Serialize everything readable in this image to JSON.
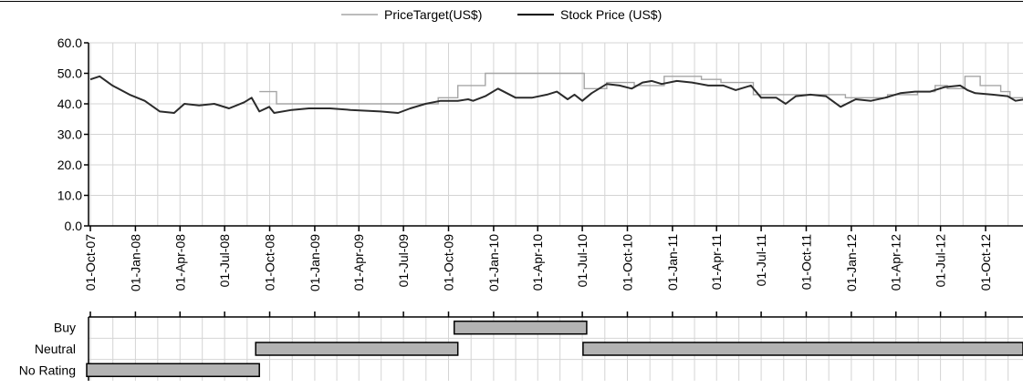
{
  "legend": {
    "price_target_label": "PriceTarget(US$)",
    "stock_price_label": "Stock Price (US$)"
  },
  "colors": {
    "price_target": "#a6a6a6",
    "stock_price": "#2b2b2b",
    "grid": "#d4d4d4",
    "rating_bar_fill": "#b3b3b3",
    "axis": "#000000"
  },
  "chart_data": [
    {
      "type": "line",
      "x_unit": "date",
      "ylim": [
        0,
        60
      ],
      "y_ticks": [
        "0.0",
        "10.0",
        "20.0",
        "30.0",
        "40.0",
        "50.0",
        "60.0"
      ],
      "x_ticks": [
        "01-Oct-07",
        "01-Jan-08",
        "01-Apr-08",
        "01-Jul-08",
        "01-Oct-08",
        "01-Jan-09",
        "01-Apr-09",
        "01-Jul-09",
        "01-Oct-09",
        "01-Jan-10",
        "01-Apr-10",
        "01-Jul-10",
        "01-Oct-10",
        "01-Jan-11",
        "01-Apr-11",
        "01-Jul-11",
        "01-Oct-11",
        "01-Jan-12",
        "01-Apr-12",
        "01-Jul-12",
        "01-Oct-12"
      ],
      "grid": true,
      "legend_position": "top",
      "series": [
        {
          "name": "PriceTarget(US$)",
          "step": true,
          "points": [
            [
              "2008-09-10",
              44.0
            ],
            [
              "2008-10-15",
              40.0
            ],
            [
              "2009-09-10",
              42.0
            ],
            [
              "2009-10-20",
              46.0
            ],
            [
              "2009-12-15",
              50.0
            ],
            [
              "2010-07-05",
              45.0
            ],
            [
              "2010-08-20",
              47.0
            ],
            [
              "2010-10-15",
              46.0
            ],
            [
              "2010-12-15",
              49.0
            ],
            [
              "2011-03-01",
              48.0
            ],
            [
              "2011-04-10",
              47.0
            ],
            [
              "2011-06-15",
              43.0
            ],
            [
              "2011-08-01",
              43.0
            ],
            [
              "2011-10-15",
              43.0
            ],
            [
              "2011-12-20",
              42.0
            ],
            [
              "2012-03-15",
              43.0
            ],
            [
              "2012-05-15",
              44.0
            ],
            [
              "2012-06-20",
              46.0
            ],
            [
              "2012-07-15",
              45.0
            ],
            [
              "2012-08-20",
              49.0
            ],
            [
              "2012-09-20",
              46.0
            ],
            [
              "2012-11-01",
              44.0
            ],
            [
              "2012-11-20",
              42.0
            ],
            [
              "2012-12-10",
              42.0
            ]
          ]
        },
        {
          "name": "Stock Price (US$)",
          "points": [
            [
              "2007-10-01",
              48.0
            ],
            [
              "2007-10-20",
              49.0
            ],
            [
              "2007-11-15",
              46.0
            ],
            [
              "2007-12-20",
              43.0
            ],
            [
              "2008-01-20",
              41.0
            ],
            [
              "2008-02-20",
              37.5
            ],
            [
              "2008-03-20",
              37.0
            ],
            [
              "2008-04-10",
              40.0
            ],
            [
              "2008-05-10",
              39.5
            ],
            [
              "2008-06-10",
              40.0
            ],
            [
              "2008-07-10",
              38.5
            ],
            [
              "2008-08-10",
              40.5
            ],
            [
              "2008-08-25",
              42.0
            ],
            [
              "2008-09-10",
              37.5
            ],
            [
              "2008-09-30",
              39.0
            ],
            [
              "2008-10-10",
              37.0
            ],
            [
              "2008-11-15",
              38.0
            ],
            [
              "2008-12-20",
              38.5
            ],
            [
              "2009-02-01",
              38.5
            ],
            [
              "2009-03-15",
              38.0
            ],
            [
              "2009-05-15",
              37.5
            ],
            [
              "2009-06-20",
              37.0
            ],
            [
              "2009-07-15",
              38.5
            ],
            [
              "2009-08-15",
              40.0
            ],
            [
              "2009-09-15",
              41.0
            ],
            [
              "2009-10-20",
              41.0
            ],
            [
              "2009-11-10",
              41.5
            ],
            [
              "2009-11-20",
              41.0
            ],
            [
              "2009-12-15",
              42.5
            ],
            [
              "2010-01-10",
              45.0
            ],
            [
              "2010-02-15",
              42.0
            ],
            [
              "2010-03-20",
              42.0
            ],
            [
              "2010-04-20",
              43.0
            ],
            [
              "2010-05-10",
              44.0
            ],
            [
              "2010-06-01",
              41.5
            ],
            [
              "2010-06-15",
              43.0
            ],
            [
              "2010-07-01",
              41.0
            ],
            [
              "2010-07-20",
              43.5
            ],
            [
              "2010-08-20",
              46.5
            ],
            [
              "2010-09-15",
              46.0
            ],
            [
              "2010-10-10",
              45.0
            ],
            [
              "2010-11-01",
              47.0
            ],
            [
              "2010-11-20",
              47.5
            ],
            [
              "2010-12-10",
              46.5
            ],
            [
              "2011-01-10",
              47.5
            ],
            [
              "2011-02-10",
              47.0
            ],
            [
              "2011-03-15",
              46.0
            ],
            [
              "2011-04-15",
              46.0
            ],
            [
              "2011-05-10",
              44.5
            ],
            [
              "2011-06-10",
              46.0
            ],
            [
              "2011-07-01",
              42.0
            ],
            [
              "2011-08-01",
              42.0
            ],
            [
              "2011-08-20",
              40.0
            ],
            [
              "2011-09-10",
              42.5
            ],
            [
              "2011-10-10",
              43.0
            ],
            [
              "2011-11-10",
              42.5
            ],
            [
              "2011-12-10",
              39.0
            ],
            [
              "2012-01-10",
              41.5
            ],
            [
              "2012-02-10",
              41.0
            ],
            [
              "2012-03-10",
              42.0
            ],
            [
              "2012-04-10",
              43.5
            ],
            [
              "2012-05-10",
              44.0
            ],
            [
              "2012-06-10",
              44.0
            ],
            [
              "2012-07-10",
              45.5
            ],
            [
              "2012-08-10",
              46.0
            ],
            [
              "2012-08-25",
              44.5
            ],
            [
              "2012-09-10",
              43.5
            ],
            [
              "2012-10-15",
              43.0
            ],
            [
              "2012-11-15",
              42.5
            ],
            [
              "2012-12-01",
              41.0
            ],
            [
              "2012-12-20",
              41.5
            ]
          ]
        }
      ]
    },
    {
      "type": "bar",
      "orientation": "horizontal",
      "categories": [
        "Buy",
        "Neutral",
        "No Rating"
      ],
      "x_unit": "date",
      "periods": [
        {
          "rating": "No Rating",
          "start": "2007-10-01",
          "end": "2008-09-10"
        },
        {
          "rating": "Neutral",
          "start": "2008-09-10",
          "end": "2009-10-20"
        },
        {
          "rating": "Buy",
          "start": "2009-10-20",
          "end": "2010-07-10"
        },
        {
          "rating": "Neutral",
          "start": "2010-07-10",
          "end": "2012-12-31"
        }
      ]
    }
  ]
}
